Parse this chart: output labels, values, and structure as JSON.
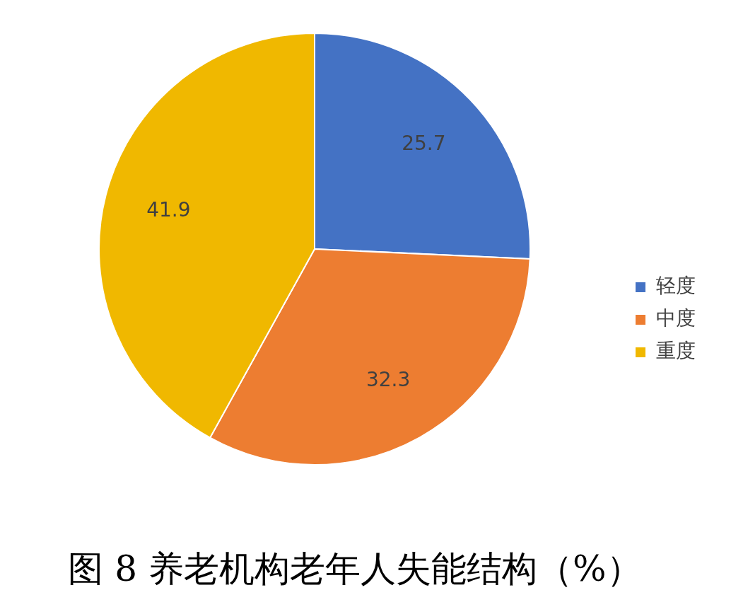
{
  "chart_data": {
    "type": "pie",
    "title": "图 8 养老机构老年人失能结构（%）",
    "categories": [
      "轻度",
      "中度",
      "重度"
    ],
    "values": [
      25.7,
      32.3,
      41.9
    ],
    "colors": [
      "#4472c4",
      "#ed7d31",
      "#f0b800"
    ],
    "data_labels": true,
    "legend": "right"
  }
}
